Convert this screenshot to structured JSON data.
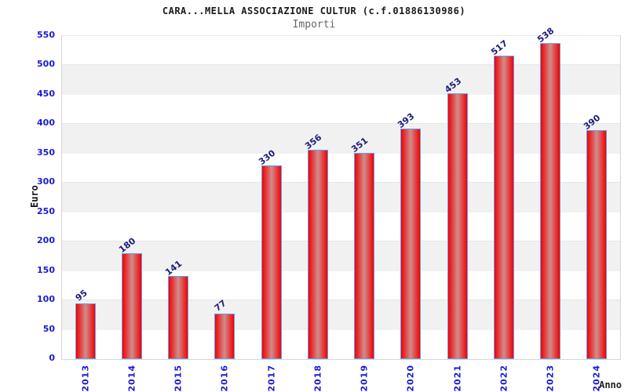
{
  "chart_data": {
    "type": "bar",
    "title": "CARA...MELLA ASSOCIAZIONE CULTUR (c.f.01886130986)",
    "subtitle": "Importi",
    "xlabel": "Anno",
    "ylabel": "Euro",
    "categories": [
      "2013",
      "2014",
      "2015",
      "2016",
      "2017",
      "2018",
      "2019",
      "2020",
      "2021",
      "2022",
      "2023",
      "2024"
    ],
    "values": [
      95,
      180,
      141,
      77,
      330,
      356,
      351,
      393,
      453,
      517,
      538,
      390
    ],
    "ylim": [
      0,
      550
    ],
    "ytick_step": 50,
    "grid": "alternating-horizontal-bands",
    "legend": "none",
    "colors": {
      "bar_fill_edge": "#ec0505",
      "bar_fill_center": "#cf8d8d",
      "bar_border": "#60a0f0",
      "axis_tick_label": "#1a1ad2",
      "value_label": "#1c1c80",
      "band_gray": "#f1f1f1",
      "plot_border": "#d6d6d6",
      "title_color": "#1a1a1a",
      "subtitle_color": "#666666"
    }
  }
}
